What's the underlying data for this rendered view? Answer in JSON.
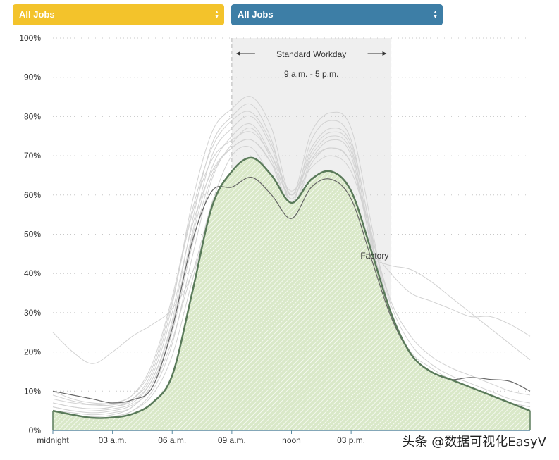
{
  "controls": {
    "left_select": {
      "value": "All Jobs",
      "color": "#f3c32b"
    },
    "right_select": {
      "value": "All Jobs",
      "color": "#3d7ea6"
    }
  },
  "chart_data": {
    "type": "area",
    "xlim": [
      0,
      24
    ],
    "ylim": [
      0,
      100
    ],
    "x_ticks": [
      {
        "x": 0,
        "label": "midnight"
      },
      {
        "x": 3,
        "label": "03 a.m."
      },
      {
        "x": 6,
        "label": "06 a.m."
      },
      {
        "x": 9,
        "label": "09 a.m."
      },
      {
        "x": 12,
        "label": "noon"
      },
      {
        "x": 15,
        "label": "03 p.m."
      }
    ],
    "y_ticks": [
      "0%",
      "10%",
      "20%",
      "30%",
      "40%",
      "50%",
      "60%",
      "70%",
      "80%",
      "90%",
      "100%"
    ],
    "grid": "horizontal dotted",
    "workday_band": {
      "start": 9,
      "end": 17,
      "label": "Standard Workday",
      "sublabel": "9 a.m. - 5 p.m."
    },
    "highlighted_series": {
      "name": "Factory",
      "label_at": {
        "x": 16,
        "y": 44
      },
      "color": "#5a7a5a",
      "fill": "#d9e8c8",
      "x": [
        0,
        1,
        2,
        3,
        4,
        5,
        6,
        7,
        8,
        9,
        10,
        11,
        12,
        13,
        14,
        15,
        16,
        17,
        18,
        19,
        20,
        21,
        22,
        23,
        24
      ],
      "y": [
        5,
        4,
        3.2,
        3.3,
        4.2,
        7,
        14,
        35,
        57,
        66,
        69.5,
        65,
        58,
        64,
        66,
        61,
        46,
        30,
        19.5,
        15,
        13,
        11,
        9,
        7,
        5
      ]
    },
    "compare_series": {
      "color": "#666666",
      "x": [
        0,
        1,
        2,
        3,
        4,
        5,
        6,
        7,
        8,
        9,
        10,
        11,
        12,
        13,
        14,
        15,
        16,
        17,
        18,
        19,
        20,
        21,
        22,
        23,
        24
      ],
      "y": [
        10,
        9,
        8,
        7,
        7.8,
        11,
        26,
        48,
        61,
        62,
        64.5,
        60,
        54,
        62,
        64,
        59,
        44,
        29,
        19.5,
        15,
        13,
        13.5,
        13,
        12.5,
        10
      ]
    },
    "background_series": [
      {
        "y": [
          25,
          20,
          17,
          20,
          24,
          27,
          31,
          40,
          58,
          70,
          72,
          64,
          55,
          63,
          65,
          60,
          47,
          40,
          35,
          33,
          31,
          29,
          29,
          27,
          24
        ]
      },
      {
        "y": [
          7,
          6,
          5.5,
          6,
          8,
          15,
          32,
          58,
          76,
          82,
          85,
          77,
          60,
          76,
          81,
          77,
          53,
          27,
          16,
          12,
          10,
          9,
          8,
          6,
          5
        ]
      },
      {
        "y": [
          6,
          5,
          5,
          5.5,
          7,
          13,
          28,
          53,
          73,
          80,
          83,
          74,
          58,
          74,
          79,
          74,
          50,
          24,
          15,
          11,
          9,
          8,
          7,
          5.5,
          4
        ]
      },
      {
        "y": [
          8,
          7,
          6.5,
          7,
          9,
          17,
          34,
          56,
          72,
          79,
          81,
          73,
          60,
          72,
          77,
          73,
          51,
          30,
          20,
          16,
          13,
          11,
          9,
          7,
          6
        ]
      },
      {
        "y": [
          5,
          4,
          3.5,
          4,
          6,
          12,
          26,
          49,
          67,
          75,
          78,
          70,
          59,
          70,
          75,
          71,
          49,
          26,
          16,
          12,
          10,
          8,
          7,
          6,
          5
        ]
      },
      {
        "y": [
          9,
          7.5,
          6.5,
          6.5,
          8,
          14,
          30,
          52,
          66,
          72,
          74,
          68,
          60,
          67,
          70,
          66,
          50,
          32,
          22,
          17,
          14,
          12,
          10,
          8,
          7
        ]
      },
      {
        "y": [
          4,
          3.5,
          3,
          3.5,
          5,
          10,
          22,
          44,
          64,
          73,
          77,
          69,
          57,
          69,
          74,
          70,
          47,
          25,
          15,
          11,
          9,
          7,
          6,
          4.5,
          4
        ]
      },
      {
        "y": [
          7,
          6,
          5.5,
          6,
          7.5,
          13,
          27,
          50,
          70,
          77,
          80,
          72,
          59,
          71,
          76,
          72,
          49,
          29,
          18,
          14,
          11,
          9,
          8,
          7,
          6
        ]
      },
      {
        "y": [
          6,
          5,
          4.5,
          5,
          6.5,
          11,
          23,
          40,
          50,
          52,
          53,
          52,
          50,
          51,
          51,
          49,
          44,
          42,
          41,
          38,
          34,
          30,
          26,
          22,
          18
        ]
      },
      {
        "y": [
          3,
          3,
          3,
          3.5,
          5,
          9,
          19,
          38,
          56,
          64,
          67,
          62,
          55,
          62,
          64,
          60,
          44,
          25,
          14,
          10,
          8,
          6,
          5,
          4,
          3
        ]
      },
      {
        "y": [
          10,
          8,
          7,
          7,
          9,
          16,
          33,
          55,
          69,
          74,
          76,
          70,
          61,
          69,
          72,
          68,
          50,
          33,
          24,
          19,
          16,
          14,
          12,
          10,
          9
        ]
      },
      {
        "y": [
          5,
          4.5,
          4,
          4.5,
          6,
          12,
          25,
          47,
          65,
          72,
          74,
          68,
          56,
          68,
          72,
          68,
          48,
          28,
          17,
          13,
          10,
          8,
          7,
          5.5,
          5
        ]
      }
    ]
  },
  "watermark": "头条 @数据可视化EasyV"
}
